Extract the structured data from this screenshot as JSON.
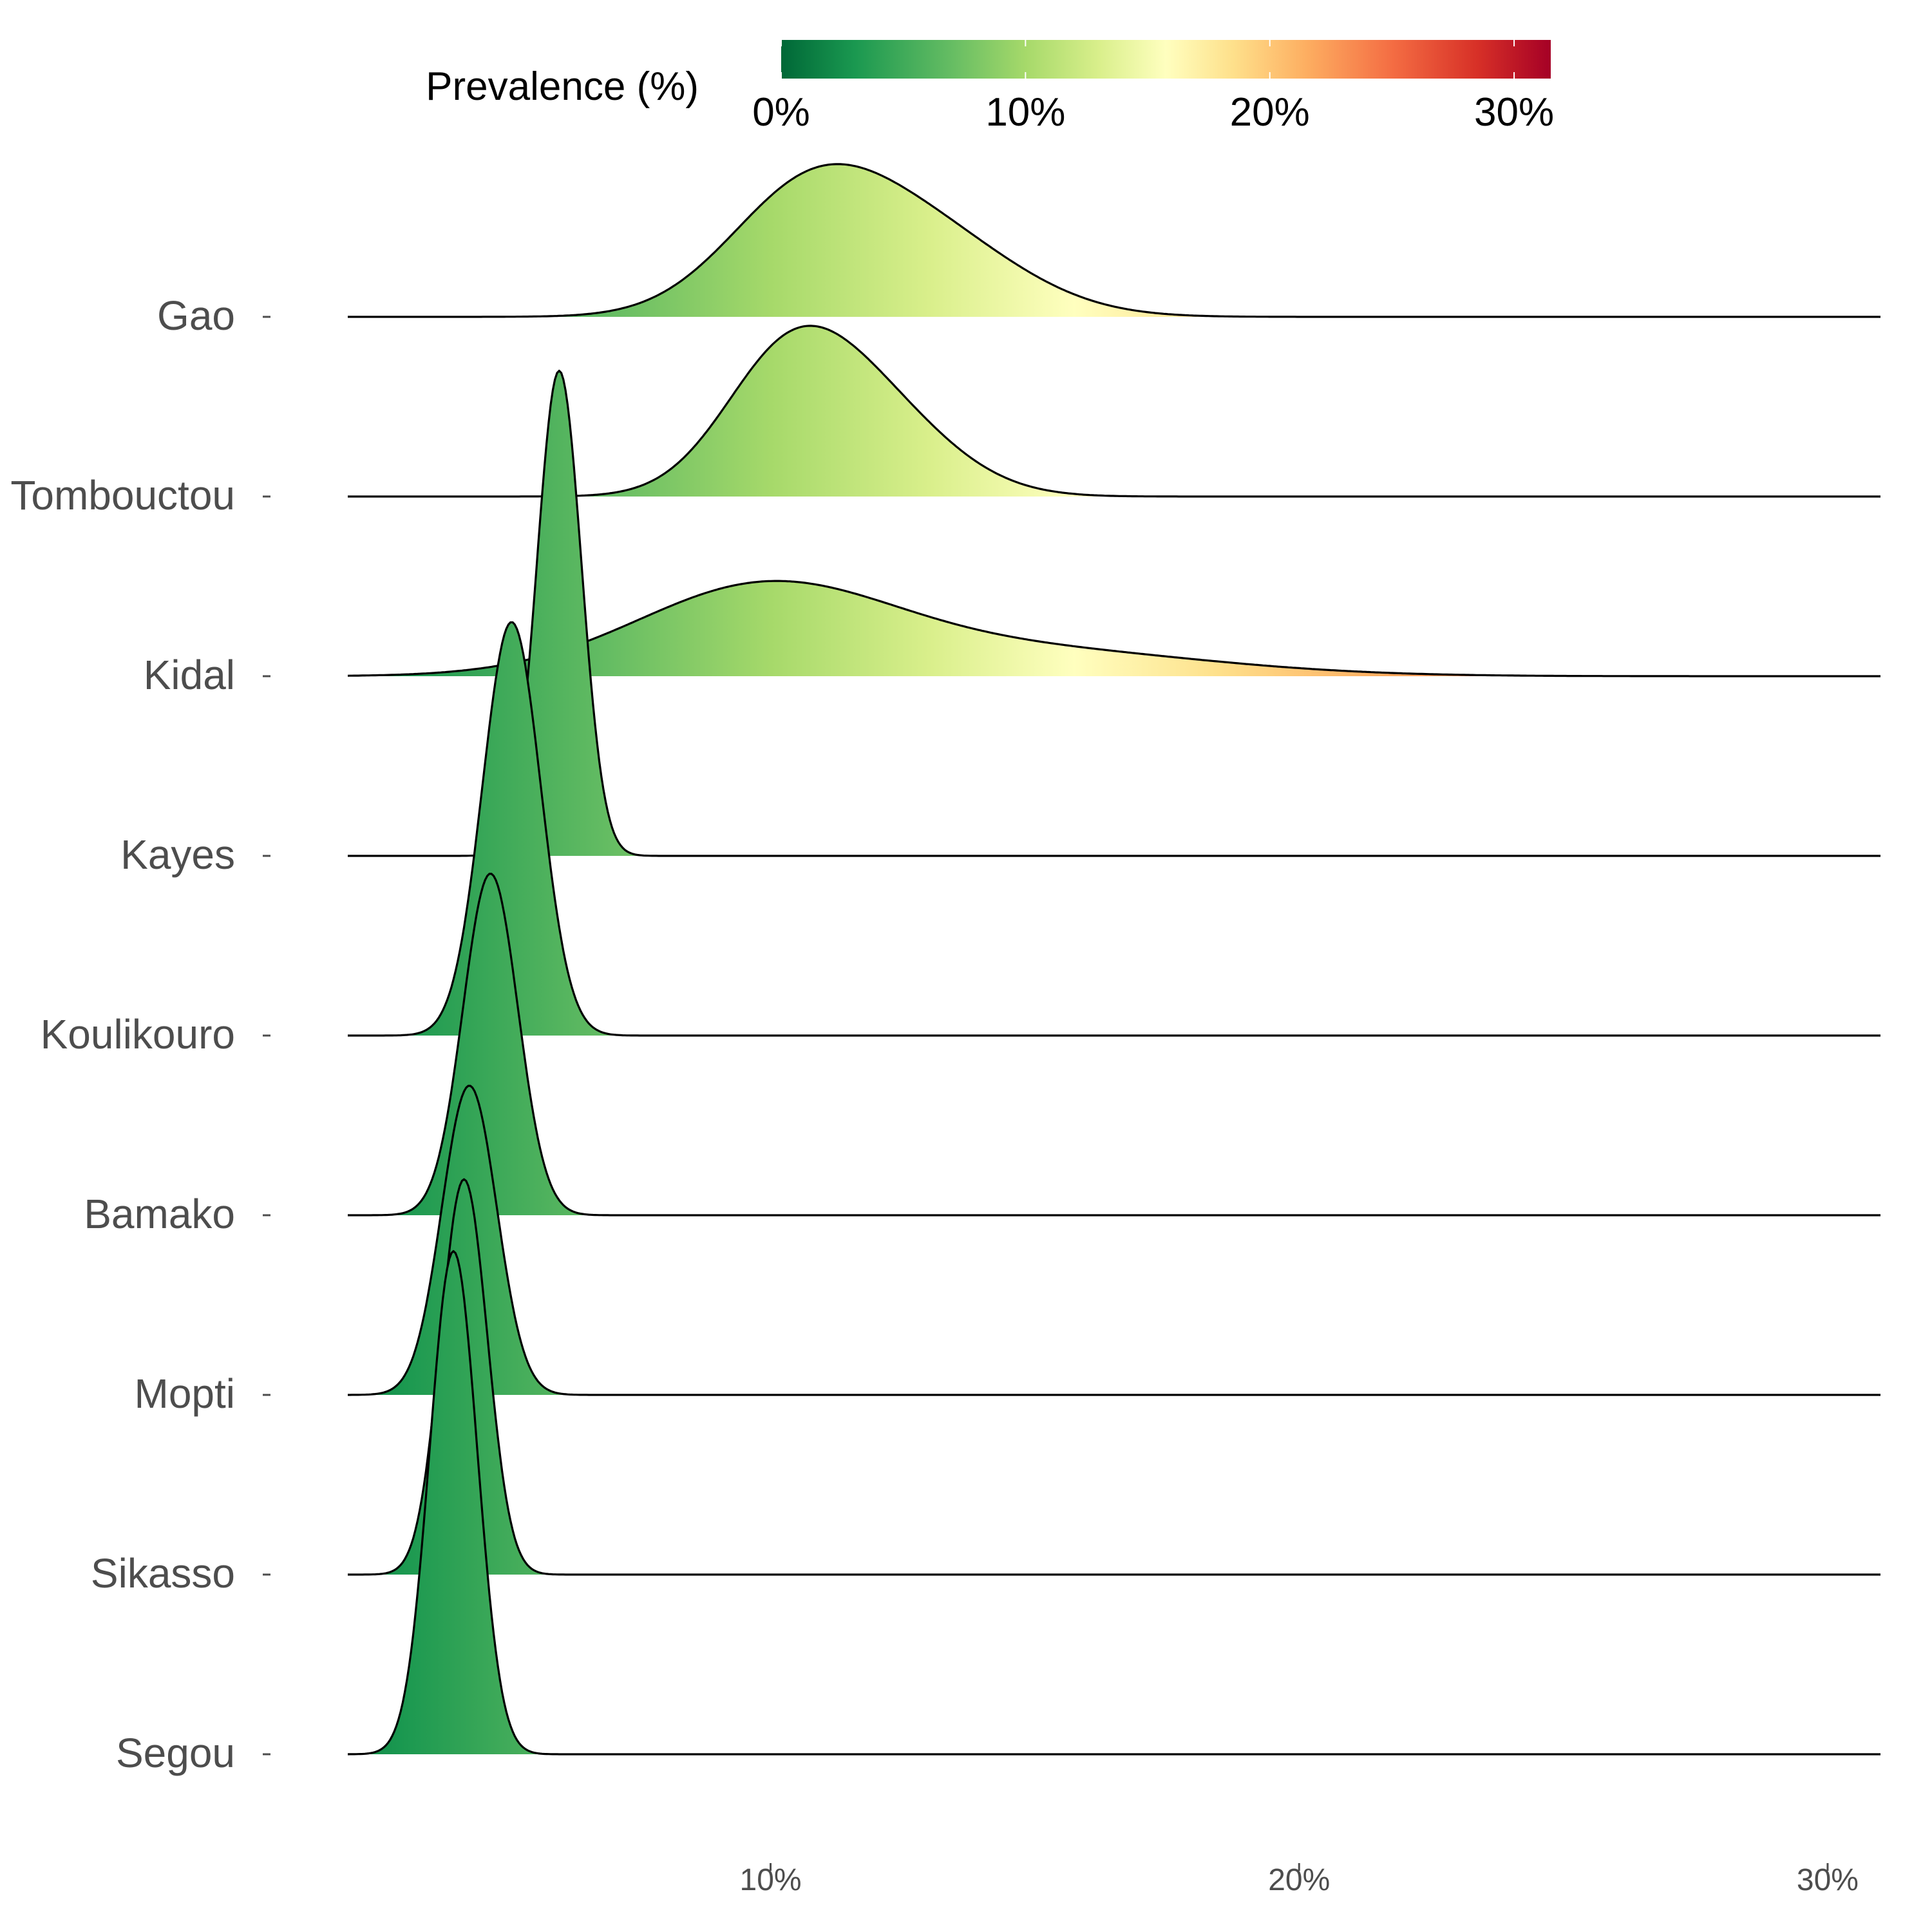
{
  "chart_data": {
    "type": "ridgeline",
    "title": "",
    "xlabel": "",
    "ylabel": "",
    "x_unit": "%",
    "xlim": [
      2,
      31
    ],
    "x_ticks": [
      {
        "value": 10,
        "label": "10%"
      },
      {
        "value": 20,
        "label": "20%"
      },
      {
        "value": 30,
        "label": "30%"
      }
    ],
    "grid": false,
    "fill_colorscale": "RdYlGn reversed (green = low, red = high)",
    "legend": {
      "title": "Prevalence (%)",
      "placement": "top",
      "range": [
        0,
        31.5
      ],
      "ticks": [
        {
          "value": 0,
          "label": "0%"
        },
        {
          "value": 10,
          "label": "10%"
        },
        {
          "value": 20,
          "label": "20%"
        },
        {
          "value": 30,
          "label": "30%"
        }
      ],
      "colors": [
        {
          "value": 0,
          "color": "#006837"
        },
        {
          "value": 3,
          "color": "#1a9850"
        },
        {
          "value": 7,
          "color": "#66bd63"
        },
        {
          "value": 10,
          "color": "#a6d96a"
        },
        {
          "value": 13,
          "color": "#d9ef8b"
        },
        {
          "value": 15.75,
          "color": "#ffffbf"
        },
        {
          "value": 18.5,
          "color": "#fee08b"
        },
        {
          "value": 21.5,
          "color": "#fdae61"
        },
        {
          "value": 25,
          "color": "#f46d43"
        },
        {
          "value": 28.5,
          "color": "#d73027"
        },
        {
          "value": 31.5,
          "color": "#a50026"
        }
      ]
    },
    "series": [
      {
        "name": "Gao",
        "peak_x": 11.4,
        "peak_height": 0.85,
        "components": [
          {
            "mu": 10.6,
            "sigma": 1.5,
            "w": 0.55
          },
          {
            "mu": 12.8,
            "sigma": 1.8,
            "w": 0.45
          }
        ]
      },
      {
        "name": "Tombouctou",
        "peak_x": 11.0,
        "peak_height": 0.95,
        "components": [
          {
            "mu": 10.2,
            "sigma": 1.2,
            "w": 0.5
          },
          {
            "mu": 11.7,
            "sigma": 1.5,
            "w": 0.5
          }
        ]
      },
      {
        "name": "Kidal",
        "peak_x": 10.1,
        "peak_height": 0.53,
        "components": [
          {
            "mu": 9.8,
            "sigma": 2.4,
            "w": 0.75
          },
          {
            "mu": 14.5,
            "sigma": 3.5,
            "w": 0.25
          }
        ]
      },
      {
        "name": "Kayes",
        "peak_x": 6.0,
        "peak_height": 2.7,
        "components": [
          {
            "mu": 6.0,
            "sigma": 0.42,
            "w": 1
          }
        ]
      },
      {
        "name": "Koulikouro",
        "peak_x": 5.1,
        "peak_height": 2.3,
        "components": [
          {
            "mu": 5.1,
            "sigma": 0.55,
            "w": 1
          }
        ]
      },
      {
        "name": "Bamako",
        "peak_x": 4.7,
        "peak_height": 1.9,
        "components": [
          {
            "mu": 4.7,
            "sigma": 0.52,
            "w": 1
          }
        ]
      },
      {
        "name": "Mopti",
        "peak_x": 4.3,
        "peak_height": 1.72,
        "components": [
          {
            "mu": 4.3,
            "sigma": 0.52,
            "w": 1
          }
        ]
      },
      {
        "name": "Sikasso",
        "peak_x": 4.2,
        "peak_height": 2.2,
        "components": [
          {
            "mu": 4.2,
            "sigma": 0.44,
            "w": 1
          }
        ]
      },
      {
        "name": "Segou",
        "peak_x": 4.0,
        "peak_height": 2.8,
        "components": [
          {
            "mu": 4.0,
            "sigma": 0.45,
            "w": 1
          }
        ]
      }
    ]
  }
}
